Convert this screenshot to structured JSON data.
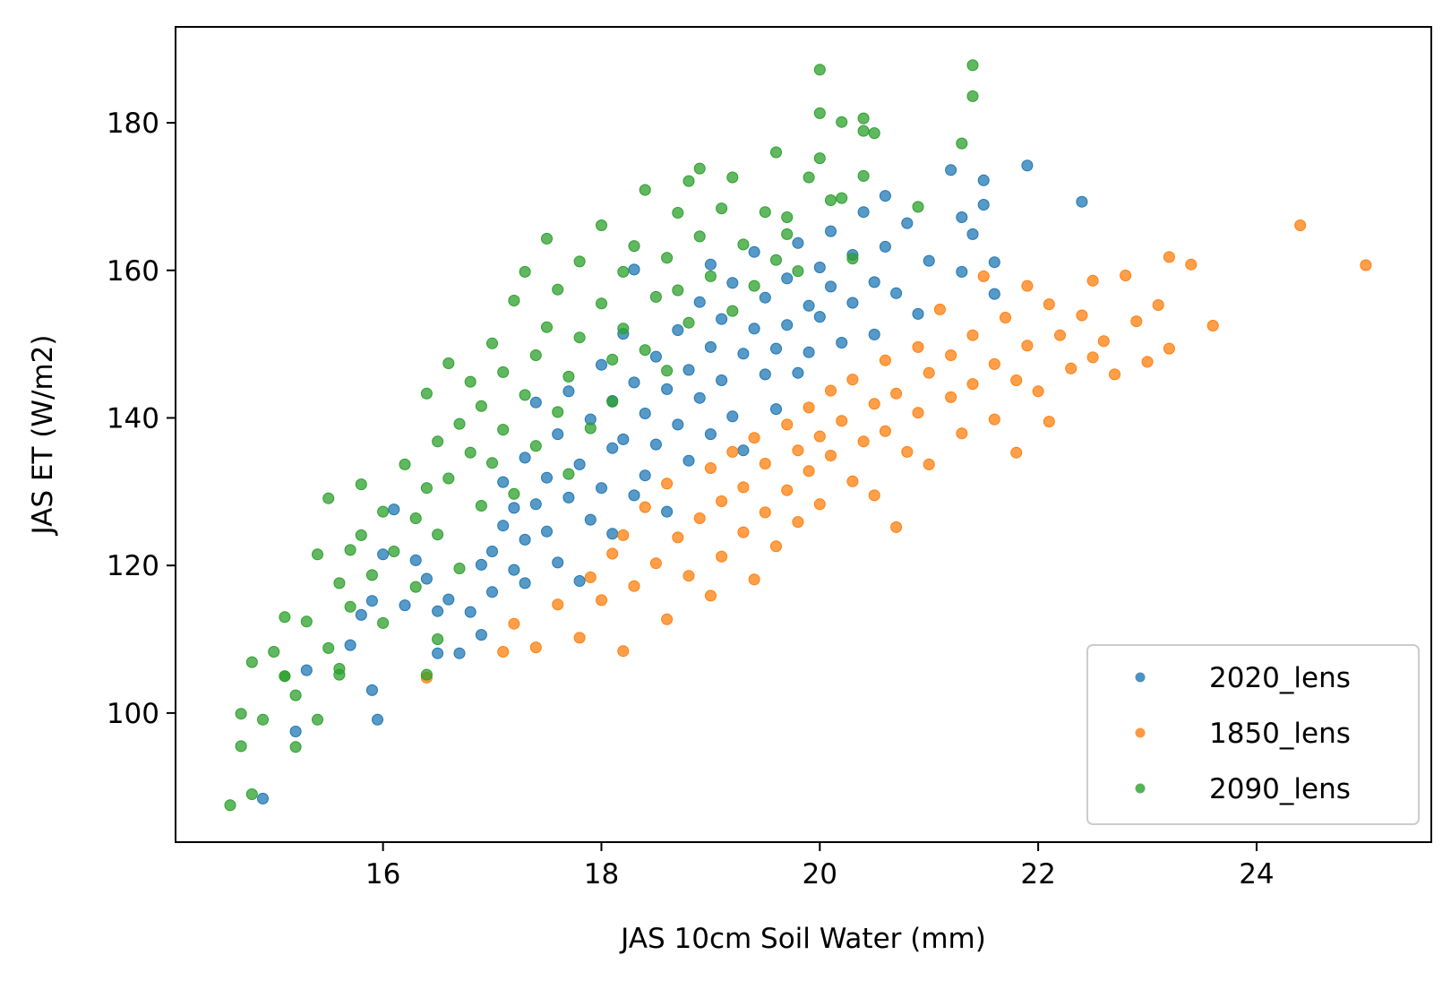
{
  "chart_data": {
    "type": "scatter",
    "title": "",
    "xlabel": "JAS 10cm Soil Water (mm)",
    "ylabel": "JAS ET (W/m2)",
    "xlim": [
      14.1,
      25.6
    ],
    "ylim": [
      82.5,
      193.0
    ],
    "xticks": [
      "16",
      "18",
      "20",
      "22",
      "24"
    ],
    "yticks": [
      "100",
      "120",
      "140",
      "160",
      "180"
    ],
    "grid": false,
    "legend_position": "lower-right",
    "series": [
      {
        "name": "2020_lens",
        "color": "#1f77b4",
        "points": [
          [
            14.9,
            88.4
          ],
          [
            15.2,
            97.5
          ],
          [
            15.3,
            105.8
          ],
          [
            15.7,
            109.2
          ],
          [
            15.9,
            103.1
          ],
          [
            15.95,
            99.1
          ],
          [
            15.8,
            113.3
          ],
          [
            15.9,
            115.2
          ],
          [
            16.0,
            121.5
          ],
          [
            16.1,
            127.6
          ],
          [
            16.2,
            114.6
          ],
          [
            16.3,
            120.7
          ],
          [
            16.4,
            118.2
          ],
          [
            16.5,
            113.8
          ],
          [
            16.5,
            108.1
          ],
          [
            16.6,
            115.4
          ],
          [
            16.7,
            108.1
          ],
          [
            16.8,
            113.7
          ],
          [
            16.9,
            120.1
          ],
          [
            16.9,
            110.6
          ],
          [
            17.0,
            116.4
          ],
          [
            17.0,
            121.9
          ],
          [
            17.1,
            125.4
          ],
          [
            17.1,
            131.3
          ],
          [
            17.2,
            119.4
          ],
          [
            17.2,
            127.8
          ],
          [
            17.3,
            117.6
          ],
          [
            17.3,
            123.5
          ],
          [
            17.3,
            134.6
          ],
          [
            17.4,
            128.3
          ],
          [
            17.4,
            142.1
          ],
          [
            17.5,
            131.9
          ],
          [
            17.5,
            124.6
          ],
          [
            17.6,
            137.8
          ],
          [
            17.6,
            120.4
          ],
          [
            17.7,
            129.2
          ],
          [
            17.7,
            143.6
          ],
          [
            17.8,
            133.7
          ],
          [
            17.8,
            117.9
          ],
          [
            17.9,
            126.2
          ],
          [
            17.9,
            139.8
          ],
          [
            18.0,
            147.2
          ],
          [
            18.0,
            130.5
          ],
          [
            18.1,
            135.9
          ],
          [
            18.1,
            142.3
          ],
          [
            18.1,
            124.3
          ],
          [
            18.2,
            151.4
          ],
          [
            18.2,
            137.1
          ],
          [
            18.3,
            129.5
          ],
          [
            18.3,
            144.8
          ],
          [
            18.3,
            160.1
          ],
          [
            18.4,
            140.6
          ],
          [
            18.4,
            132.2
          ],
          [
            18.5,
            148.3
          ],
          [
            18.5,
            136.4
          ],
          [
            18.6,
            143.9
          ],
          [
            18.6,
            127.3
          ],
          [
            18.7,
            151.9
          ],
          [
            18.7,
            139.1
          ],
          [
            18.8,
            146.5
          ],
          [
            18.8,
            134.2
          ],
          [
            18.9,
            155.7
          ],
          [
            18.9,
            142.7
          ],
          [
            19.0,
            149.6
          ],
          [
            19.0,
            137.8
          ],
          [
            19.0,
            160.8
          ],
          [
            19.1,
            145.1
          ],
          [
            19.1,
            153.4
          ],
          [
            19.2,
            140.2
          ],
          [
            19.2,
            158.3
          ],
          [
            19.3,
            148.7
          ],
          [
            19.3,
            135.6
          ],
          [
            19.4,
            152.1
          ],
          [
            19.4,
            162.5
          ],
          [
            19.5,
            145.9
          ],
          [
            19.5,
            156.3
          ],
          [
            19.6,
            149.4
          ],
          [
            19.6,
            141.2
          ],
          [
            19.7,
            158.9
          ],
          [
            19.7,
            152.6
          ],
          [
            19.8,
            146.1
          ],
          [
            19.8,
            163.7
          ],
          [
            19.9,
            155.2
          ],
          [
            19.9,
            148.9
          ],
          [
            20.0,
            160.4
          ],
          [
            20.0,
            153.7
          ],
          [
            20.1,
            165.3
          ],
          [
            20.1,
            157.8
          ],
          [
            20.2,
            150.2
          ],
          [
            20.3,
            162.1
          ],
          [
            20.3,
            155.6
          ],
          [
            20.4,
            167.9
          ],
          [
            20.5,
            158.4
          ],
          [
            20.5,
            151.3
          ],
          [
            20.6,
            170.1
          ],
          [
            20.6,
            163.2
          ],
          [
            20.7,
            156.9
          ],
          [
            20.8,
            166.4
          ],
          [
            20.9,
            154.1
          ],
          [
            21.0,
            161.3
          ],
          [
            21.2,
            173.6
          ],
          [
            21.3,
            167.2
          ],
          [
            21.3,
            159.8
          ],
          [
            21.4,
            164.9
          ],
          [
            21.5,
            168.9
          ],
          [
            21.6,
            156.8
          ],
          [
            21.6,
            161.1
          ],
          [
            21.9,
            174.2
          ],
          [
            22.4,
            169.3
          ],
          [
            21.5,
            172.2
          ]
        ]
      },
      {
        "name": "1850_lens",
        "color": "#ff7f0e",
        "points": [
          [
            16.4,
            104.8
          ],
          [
            17.1,
            108.3
          ],
          [
            17.2,
            112.1
          ],
          [
            17.4,
            108.9
          ],
          [
            17.6,
            114.7
          ],
          [
            17.8,
            110.2
          ],
          [
            17.9,
            118.4
          ],
          [
            18.0,
            115.3
          ],
          [
            18.1,
            121.6
          ],
          [
            18.2,
            108.4
          ],
          [
            18.2,
            124.1
          ],
          [
            18.3,
            117.2
          ],
          [
            18.4,
            127.9
          ],
          [
            18.5,
            120.3
          ],
          [
            18.6,
            112.7
          ],
          [
            18.6,
            131.1
          ],
          [
            18.7,
            123.8
          ],
          [
            18.8,
            118.6
          ],
          [
            18.9,
            126.4
          ],
          [
            19.0,
            133.2
          ],
          [
            19.0,
            115.9
          ],
          [
            19.1,
            128.7
          ],
          [
            19.1,
            121.2
          ],
          [
            19.2,
            135.4
          ],
          [
            19.3,
            124.5
          ],
          [
            19.3,
            130.6
          ],
          [
            19.4,
            118.1
          ],
          [
            19.4,
            137.3
          ],
          [
            19.5,
            127.2
          ],
          [
            19.5,
            133.8
          ],
          [
            19.6,
            122.6
          ],
          [
            19.7,
            139.1
          ],
          [
            19.7,
            130.2
          ],
          [
            19.8,
            135.6
          ],
          [
            19.8,
            125.9
          ],
          [
            19.9,
            141.4
          ],
          [
            19.9,
            132.8
          ],
          [
            20.0,
            137.5
          ],
          [
            20.0,
            128.3
          ],
          [
            20.1,
            143.7
          ],
          [
            20.1,
            134.9
          ],
          [
            20.2,
            139.6
          ],
          [
            20.3,
            131.4
          ],
          [
            20.3,
            145.2
          ],
          [
            20.4,
            136.8
          ],
          [
            20.5,
            141.9
          ],
          [
            20.5,
            129.5
          ],
          [
            20.6,
            147.8
          ],
          [
            20.6,
            138.2
          ],
          [
            20.7,
            125.2
          ],
          [
            20.7,
            143.3
          ],
          [
            20.8,
            135.4
          ],
          [
            20.9,
            149.6
          ],
          [
            20.9,
            140.7
          ],
          [
            21.0,
            146.1
          ],
          [
            21.0,
            133.7
          ],
          [
            21.1,
            154.7
          ],
          [
            21.2,
            142.8
          ],
          [
            21.2,
            148.5
          ],
          [
            21.3,
            137.9
          ],
          [
            21.4,
            151.2
          ],
          [
            21.4,
            144.6
          ],
          [
            21.5,
            159.2
          ],
          [
            21.6,
            147.3
          ],
          [
            21.6,
            139.8
          ],
          [
            21.7,
            153.6
          ],
          [
            21.8,
            145.1
          ],
          [
            21.8,
            135.3
          ],
          [
            21.9,
            157.9
          ],
          [
            21.9,
            149.8
          ],
          [
            22.0,
            143.6
          ],
          [
            22.1,
            155.4
          ],
          [
            22.1,
            139.5
          ],
          [
            22.2,
            151.2
          ],
          [
            22.3,
            146.7
          ],
          [
            22.4,
            153.9
          ],
          [
            22.5,
            158.6
          ],
          [
            22.5,
            148.2
          ],
          [
            22.6,
            150.4
          ],
          [
            22.7,
            145.9
          ],
          [
            22.8,
            159.3
          ],
          [
            22.9,
            153.1
          ],
          [
            23.0,
            147.6
          ],
          [
            23.1,
            155.3
          ],
          [
            23.2,
            149.4
          ],
          [
            23.2,
            161.8
          ],
          [
            23.4,
            160.8
          ],
          [
            23.6,
            152.5
          ],
          [
            24.4,
            166.1
          ],
          [
            25.0,
            160.7
          ]
        ]
      },
      {
        "name": "2090_lens",
        "color": "#2ca02c",
        "points": [
          [
            14.6,
            87.5
          ],
          [
            14.7,
            95.5
          ],
          [
            14.7,
            99.9
          ],
          [
            14.8,
            89.0
          ],
          [
            14.8,
            106.9
          ],
          [
            14.9,
            99.1
          ],
          [
            15.0,
            108.3
          ],
          [
            15.1,
            105.0
          ],
          [
            15.1,
            113.0
          ],
          [
            15.2,
            102.4
          ],
          [
            15.2,
            95.4
          ],
          [
            15.3,
            112.4
          ],
          [
            15.4,
            121.5
          ],
          [
            15.4,
            99.1
          ],
          [
            15.5,
            108.8
          ],
          [
            15.5,
            129.1
          ],
          [
            15.6,
            117.6
          ],
          [
            15.6,
            105.2
          ],
          [
            15.7,
            122.1
          ],
          [
            15.7,
            114.4
          ],
          [
            15.8,
            131.0
          ],
          [
            15.8,
            124.1
          ],
          [
            15.9,
            118.7
          ],
          [
            16.0,
            127.3
          ],
          [
            16.0,
            112.2
          ],
          [
            16.1,
            121.9
          ],
          [
            16.2,
            133.7
          ],
          [
            16.3,
            126.4
          ],
          [
            16.3,
            117.1
          ],
          [
            16.4,
            143.3
          ],
          [
            16.4,
            130.5
          ],
          [
            16.5,
            136.8
          ],
          [
            16.5,
            124.2
          ],
          [
            16.6,
            147.4
          ],
          [
            16.6,
            131.8
          ],
          [
            16.7,
            139.2
          ],
          [
            16.7,
            119.6
          ],
          [
            16.8,
            144.9
          ],
          [
            16.8,
            135.3
          ],
          [
            16.9,
            128.1
          ],
          [
            16.9,
            141.6
          ],
          [
            17.0,
            150.1
          ],
          [
            17.0,
            133.9
          ],
          [
            17.1,
            146.2
          ],
          [
            17.1,
            138.4
          ],
          [
            17.2,
            155.9
          ],
          [
            17.2,
            129.7
          ],
          [
            17.3,
            143.1
          ],
          [
            17.3,
            159.8
          ],
          [
            17.4,
            148.5
          ],
          [
            17.4,
            136.2
          ],
          [
            17.5,
            152.3
          ],
          [
            17.5,
            164.3
          ],
          [
            17.6,
            140.8
          ],
          [
            17.6,
            157.4
          ],
          [
            17.7,
            145.6
          ],
          [
            17.7,
            132.4
          ],
          [
            17.8,
            161.2
          ],
          [
            17.8,
            150.9
          ],
          [
            17.9,
            138.6
          ],
          [
            18.0,
            155.5
          ],
          [
            18.0,
            166.1
          ],
          [
            18.1,
            147.9
          ],
          [
            18.1,
            142.2
          ],
          [
            18.2,
            159.8
          ],
          [
            18.2,
            152.1
          ],
          [
            18.3,
            163.3
          ],
          [
            18.4,
            149.2
          ],
          [
            18.4,
            170.9
          ],
          [
            18.5,
            156.4
          ],
          [
            18.6,
            161.7
          ],
          [
            18.6,
            146.4
          ],
          [
            18.7,
            167.8
          ],
          [
            18.7,
            157.3
          ],
          [
            18.8,
            172.1
          ],
          [
            18.8,
            152.9
          ],
          [
            18.9,
            164.6
          ],
          [
            18.9,
            173.8
          ],
          [
            19.0,
            159.2
          ],
          [
            19.1,
            168.4
          ],
          [
            19.2,
            172.6
          ],
          [
            19.2,
            154.5
          ],
          [
            19.3,
            163.5
          ],
          [
            19.4,
            157.9
          ],
          [
            19.5,
            167.9
          ],
          [
            19.6,
            176.0
          ],
          [
            19.6,
            161.4
          ],
          [
            19.7,
            167.2
          ],
          [
            19.8,
            159.9
          ],
          [
            19.9,
            172.6
          ],
          [
            20.0,
            181.3
          ],
          [
            20.0,
            187.2
          ],
          [
            20.0,
            175.2
          ],
          [
            20.1,
            169.5
          ],
          [
            20.2,
            180.1
          ],
          [
            20.2,
            169.8
          ],
          [
            20.3,
            161.6
          ],
          [
            20.4,
            178.9
          ],
          [
            20.4,
            180.6
          ],
          [
            20.4,
            172.8
          ],
          [
            20.5,
            178.6
          ],
          [
            20.9,
            168.6
          ],
          [
            21.3,
            177.2
          ],
          [
            21.4,
            187.8
          ],
          [
            21.4,
            183.6
          ],
          [
            16.4,
            105.2
          ],
          [
            16.5,
            110.0
          ],
          [
            15.1,
            105.0
          ],
          [
            15.6,
            106.0
          ],
          [
            19.7,
            164.9
          ]
        ]
      }
    ]
  }
}
